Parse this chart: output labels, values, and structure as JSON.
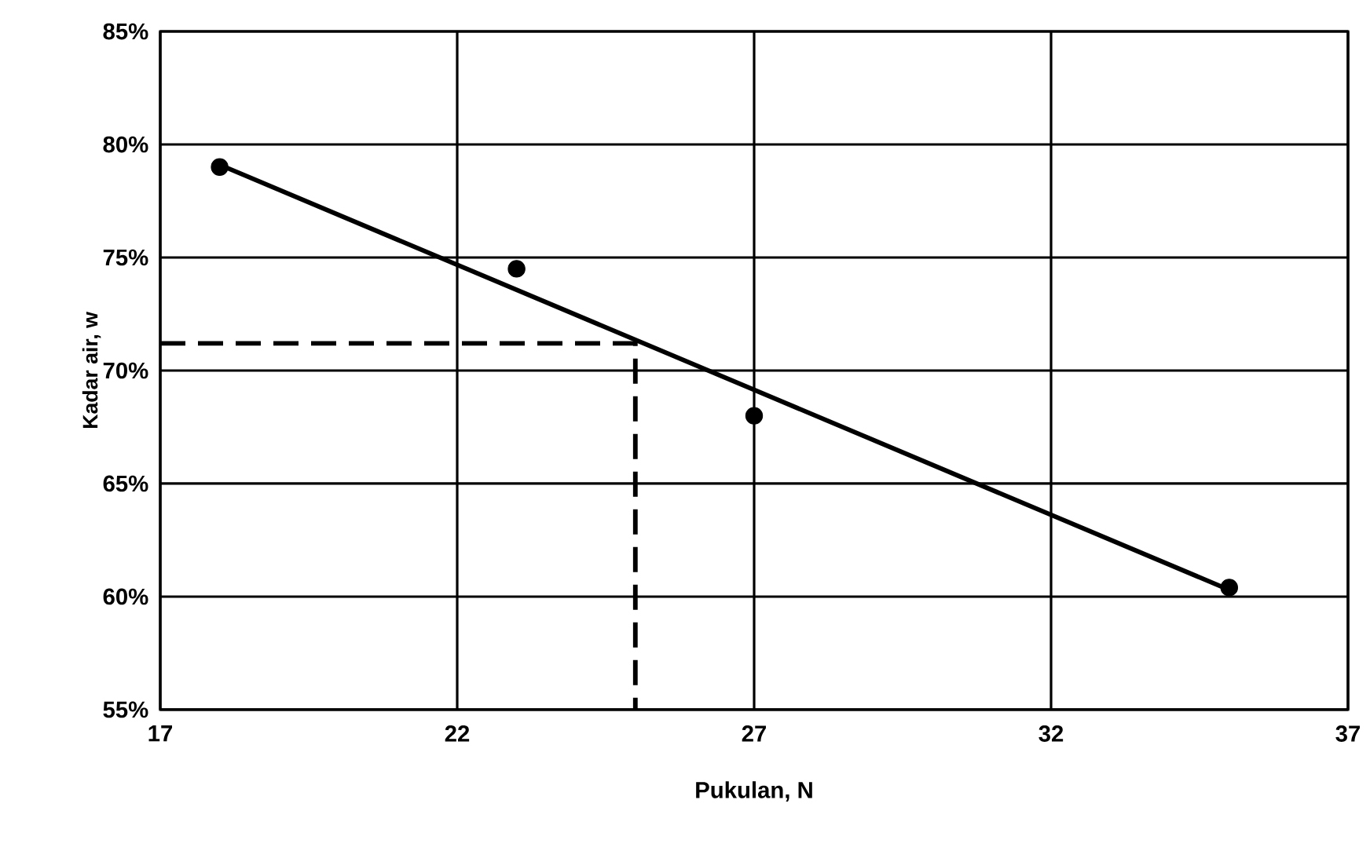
{
  "chart_data": {
    "type": "scatter",
    "xlabel": "Pukulan, N",
    "ylabel": "Kadar air, w",
    "xlim": [
      17,
      37
    ],
    "xticks": [
      17,
      22,
      27,
      32,
      37
    ],
    "ylim": [
      55,
      85
    ],
    "yticks": [
      {
        "value": 55,
        "label": "55%"
      },
      {
        "value": 60,
        "label": "60%"
      },
      {
        "value": 65,
        "label": "65%"
      },
      {
        "value": 70,
        "label": "70%"
      },
      {
        "value": 75,
        "label": "75%"
      },
      {
        "value": 80,
        "label": "80%"
      },
      {
        "value": 85,
        "label": "85%"
      }
    ],
    "grid": true,
    "series": [
      {
        "color": "#000000",
        "marker": "circle",
        "x": [
          18,
          23,
          27,
          35
        ],
        "values": [
          79.0,
          74.5,
          68.0,
          60.4
        ]
      },
      {
        "type": "line",
        "color": "#000000",
        "line_style": "solid",
        "marker": "none",
        "x": [
          18,
          35
        ],
        "values": [
          79.1,
          60.3
        ]
      },
      {
        "type": "line",
        "color": "#000000",
        "line_style": "dashed",
        "marker": "none",
        "x": [
          17,
          25,
          25
        ],
        "values": [
          71.2,
          71.2,
          55
        ]
      }
    ]
  }
}
